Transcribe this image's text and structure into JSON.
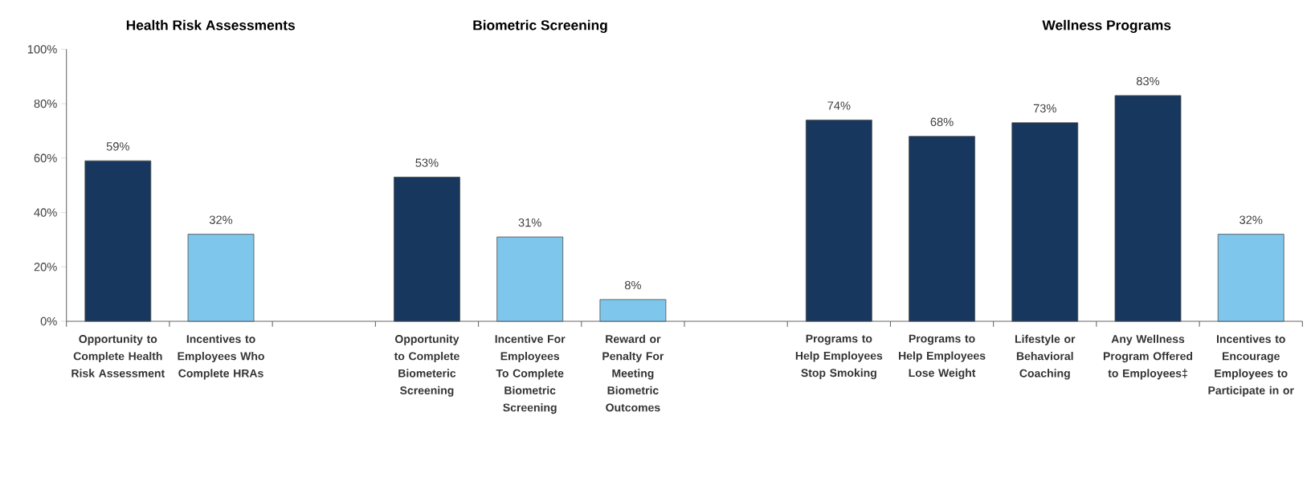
{
  "chart_data": {
    "type": "bar",
    "annotations": [
      "Health Risk Assessments",
      "Biometric Screening",
      "Wellness Programs"
    ],
    "categories": [
      "Opportunity to Complete Health Risk Assessment",
      "Incentives to Employees Who Complete HRAs",
      null,
      "Opportunity to Complete Biometeric Screening",
      "Incentive For Employees To Complete Biometric Screening",
      "Reward or Penalty For Meeting Biometric Outcomes",
      null,
      "Programs to Help Employees Stop Smoking",
      "Programs to Help Employees Lose Weight",
      "Lifestyle or Behavioral Coaching",
      "Any Wellness Program Offered to Employees‡",
      "Incentives to Encourage Employees to Participate in or"
    ],
    "values": [
      59,
      32,
      null,
      53,
      31,
      8,
      null,
      74,
      68,
      73,
      83,
      32
    ],
    "value_labels": [
      "59%",
      "32%",
      null,
      "53%",
      "31%",
      "8%",
      null,
      "74%",
      "68%",
      "73%",
      "83%",
      "32%"
    ],
    "colors": [
      "#17375e",
      "#7fc6ec",
      null,
      "#17375e",
      "#7fc6ec",
      "#7fc6ec",
      null,
      "#17375e",
      "#17375e",
      "#17375e",
      "#17375e",
      "#7fc6ec"
    ],
    "ylim": [
      0,
      100
    ],
    "yticks": [
      {
        "value": 0,
        "label": "0%"
      },
      {
        "value": 20,
        "label": "20%"
      },
      {
        "value": 40,
        "label": "40%"
      },
      {
        "value": 60,
        "label": "60%"
      },
      {
        "value": 80,
        "label": "80%"
      },
      {
        "value": 100,
        "label": "100%"
      }
    ]
  }
}
